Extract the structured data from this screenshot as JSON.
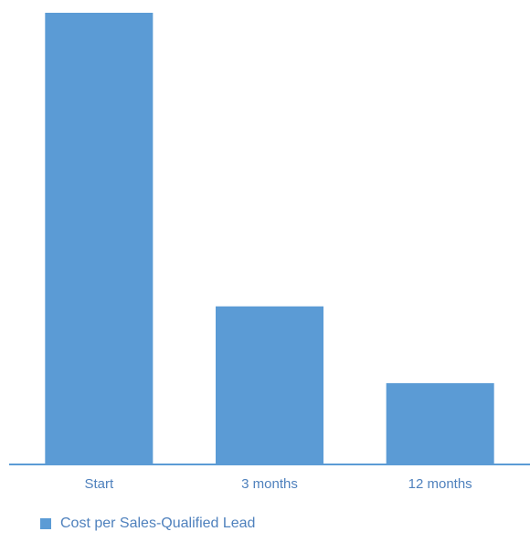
{
  "chart_data": {
    "type": "bar",
    "categories": [
      "Start",
      "3 months",
      "12 months"
    ],
    "series": [
      {
        "name": "Cost per Sales-Qualified Lead",
        "values": [
          100,
          35,
          18
        ]
      }
    ],
    "ylim": [
      0,
      100
    ],
    "grid": false,
    "legend_position": "bottom-left",
    "colors": {
      "bar": "#5b9bd5",
      "axis": "#5b9bd5",
      "text": "#4f81bd"
    }
  }
}
